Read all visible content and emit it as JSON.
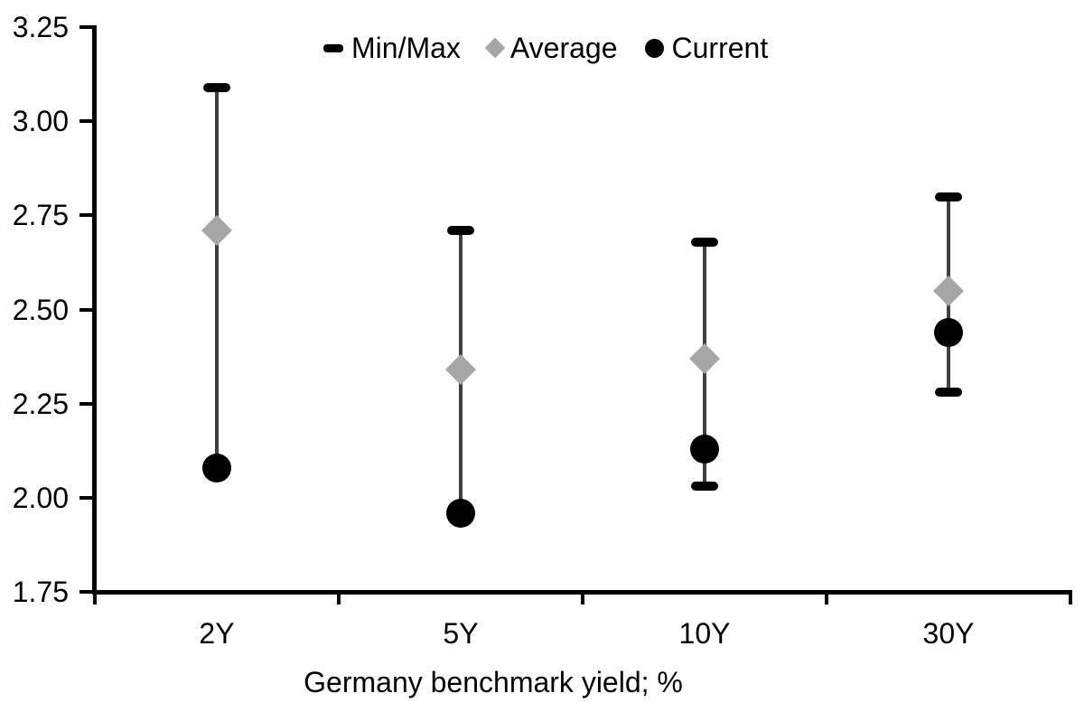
{
  "chart_data": {
    "type": "scatter",
    "subtype": "min-max-range",
    "title": "",
    "xlabel": "Germany benchmark yield; %",
    "ylabel": "",
    "categories": [
      "2Y",
      "5Y",
      "10Y",
      "30Y"
    ],
    "series": [
      {
        "name": "Min/Max",
        "marker": "dash",
        "color": "#000000",
        "min": [
          2.08,
          1.96,
          2.03,
          2.28
        ],
        "max": [
          3.09,
          2.71,
          2.68,
          2.8
        ]
      },
      {
        "name": "Average",
        "marker": "diamond",
        "color": "#a6a6a6",
        "values": [
          2.71,
          2.34,
          2.37,
          2.55
        ]
      },
      {
        "name": "Current",
        "marker": "circle",
        "color": "#000000",
        "values": [
          2.08,
          1.96,
          2.13,
          2.44
        ]
      }
    ],
    "ylim": [
      1.75,
      3.25
    ],
    "y_tick_step": 0.25,
    "y_ticks": [
      "3.25",
      "3.00",
      "2.75",
      "2.50",
      "2.25",
      "2.00",
      "1.75"
    ],
    "grid": false,
    "legend_position": "top-center",
    "colors": {
      "error_bar_line": "#404040",
      "cap": "#000000",
      "average": "#a6a6a6",
      "current": "#000000",
      "axis": "#000000",
      "text": "#000000"
    }
  }
}
